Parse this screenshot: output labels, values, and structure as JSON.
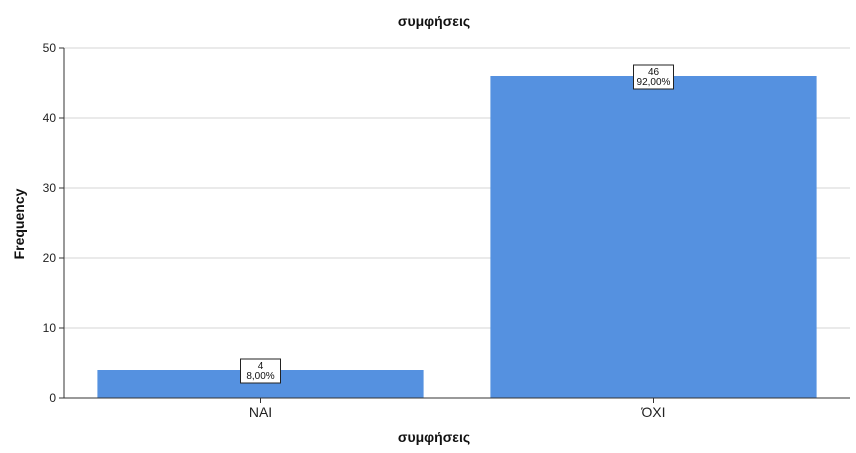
{
  "chart_data": {
    "type": "bar",
    "title": "συμφήσεις",
    "xlabel": "συμφήσεις",
    "ylabel": "Frequency",
    "categories": [
      "NAI",
      "ΌΧΙ"
    ],
    "values": [
      4,
      46
    ],
    "data_labels": [
      {
        "count": "4",
        "percent": "8,00%"
      },
      {
        "count": "46",
        "percent": "92,00%"
      }
    ],
    "ylim": [
      0,
      50
    ],
    "yticks": [
      "0",
      "10",
      "20",
      "30",
      "40",
      "50"
    ],
    "grid": true,
    "bar_color": "#5591e0",
    "gridline_color": "#d4d4d4"
  }
}
